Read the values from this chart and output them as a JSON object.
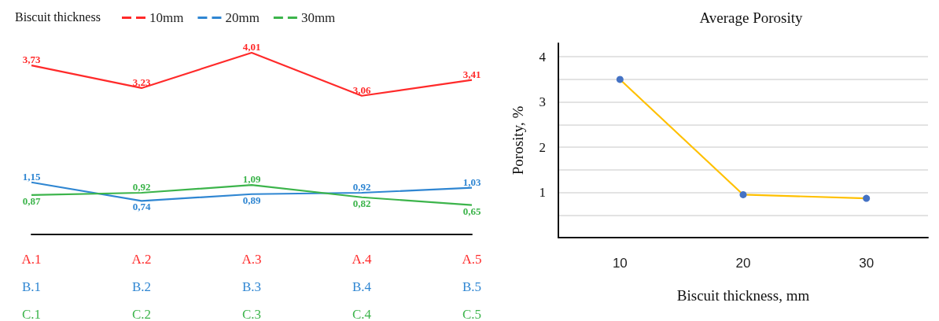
{
  "chart_data": [
    {
      "type": "line",
      "legend_title": "Biscuit thickness",
      "legend": "top left",
      "categories": [
        "A.1\nB.1\nC.1",
        "A.2\nB.2\nC.2",
        "A.3\nB.3\nC.3",
        "A.4\nB.4\nC.4",
        "A.5\nB.5\nC.5"
      ],
      "series": [
        {
          "name": "10mm",
          "color": "#ff2a2a",
          "values": [
            3.73,
            3.23,
            4.01,
            3.06,
            3.41
          ],
          "value_labels": [
            "3,73",
            "3,23",
            "4,01",
            "3,06",
            "3,41"
          ]
        },
        {
          "name": "20mm",
          "color": "#2f86d2",
          "values": [
            1.15,
            0.74,
            0.89,
            0.92,
            1.03
          ],
          "value_labels": [
            "1,15",
            "0,74",
            "0,89",
            "0,92",
            "1,03"
          ]
        },
        {
          "name": "30mm",
          "color": "#3cb44b",
          "values": [
            0.87,
            0.92,
            1.09,
            0.82,
            0.65
          ],
          "value_labels": [
            "0,87",
            "0,92",
            "1,09",
            "0,82",
            "0,65"
          ]
        }
      ]
    },
    {
      "type": "line",
      "title": "Average Porosity",
      "xlabel": "Biscuit thickness, mm",
      "ylabel": "Porosity, %",
      "categories": [
        "10",
        "20",
        "30"
      ],
      "grid": "y",
      "marker": "circle",
      "ylim": [
        0,
        4.3
      ],
      "yticks": [
        {
          "value": 0,
          "label": null
        },
        {
          "value": 0.5,
          "label": null
        },
        1,
        {
          "value": 1.5,
          "label": null
        },
        2,
        {
          "value": 2.5,
          "label": null
        },
        3,
        {
          "value": 3.5,
          "label": null
        },
        4
      ],
      "series": [
        {
          "color": "#ffc000",
          "colors": [
            "#4472c4",
            "#4472c4",
            "#4472c4"
          ],
          "values": [
            3.5,
            0.95,
            0.87
          ]
        }
      ]
    }
  ]
}
